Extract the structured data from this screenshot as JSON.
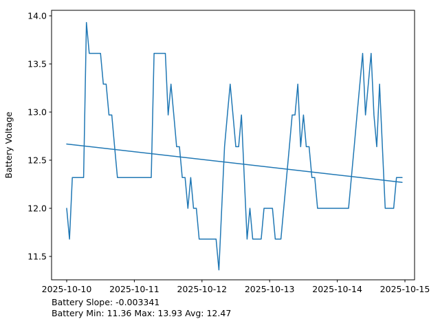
{
  "chart_data": {
    "type": "line",
    "title": "",
    "xlabel": "",
    "ylabel": "Battery Voltage",
    "ylabel_color": "#1f77b4",
    "line_color": "#1f77b4",
    "trend_color": "#1f77b4",
    "grid": false,
    "legend": "none",
    "ylim": [
      11.26,
      14.06
    ],
    "xlim_hours": [
      -5.4,
      123.5
    ],
    "x_tick_labels": [
      "2025-10-10",
      "2025-10-11",
      "2025-10-12",
      "2025-10-13",
      "2025-10-14",
      "2025-10-15"
    ],
    "x_tick_hours": [
      0,
      24,
      48,
      72,
      96,
      120
    ],
    "y_tick_labels": [
      "11.5",
      "12.0",
      "12.5",
      "13.0",
      "13.5",
      "14.0"
    ],
    "y_tick_values": [
      11.5,
      12.0,
      12.5,
      13.0,
      13.5,
      14.0
    ],
    "series": [
      {
        "name": "battery-voltage",
        "x_start_hour": 0,
        "x_step_hours": 1,
        "values": [
          12.0,
          11.68,
          12.32,
          12.32,
          12.32,
          12.32,
          12.32,
          13.93,
          13.61,
          13.61,
          13.61,
          13.61,
          13.61,
          13.29,
          13.29,
          12.97,
          12.97,
          12.64,
          12.32,
          12.32,
          12.32,
          12.32,
          12.32,
          12.32,
          12.32,
          12.32,
          12.32,
          12.32,
          12.32,
          12.32,
          12.32,
          13.61,
          13.61,
          13.61,
          13.61,
          13.61,
          12.97,
          13.29,
          12.97,
          12.64,
          12.64,
          12.32,
          12.32,
          12.0,
          12.32,
          12.0,
          12.0,
          11.68,
          11.68,
          11.68,
          11.68,
          11.68,
          11.68,
          11.68,
          11.36,
          12.0,
          12.64,
          12.97,
          13.29,
          12.97,
          12.64,
          12.64,
          12.97,
          12.32,
          11.68,
          12.0,
          11.68,
          11.68,
          11.68,
          11.68,
          12.0,
          12.0,
          12.0,
          12.0,
          11.68,
          11.68,
          11.68,
          12.0,
          12.32,
          12.64,
          12.97,
          12.97,
          13.29,
          12.64,
          12.97,
          12.64,
          12.64,
          12.32,
          12.32,
          12.0,
          12.0,
          12.0,
          12.0,
          12.0,
          12.0,
          12.0,
          12.0,
          12.0,
          12.0,
          12.0,
          12.0,
          12.32,
          12.64,
          12.97,
          13.29,
          13.61,
          12.97,
          13.29,
          13.61,
          12.97,
          12.64,
          13.29,
          12.64,
          12.0,
          12.0,
          12.0,
          12.0,
          12.32,
          12.32,
          12.32
        ]
      },
      {
        "name": "battery-trend",
        "kind": "linear-fit",
        "start": {
          "hour": 0,
          "value": 12.668
        },
        "end": {
          "hour": 119,
          "value": 12.27
        }
      }
    ],
    "stats": {
      "slope": -0.003341,
      "min": 11.36,
      "max": 13.93,
      "avg": 12.47
    }
  },
  "footer": {
    "line1": "Battery Slope: -0.003341",
    "line2": "Battery Min: 11.36 Max: 13.93 Avg: 12.47"
  }
}
